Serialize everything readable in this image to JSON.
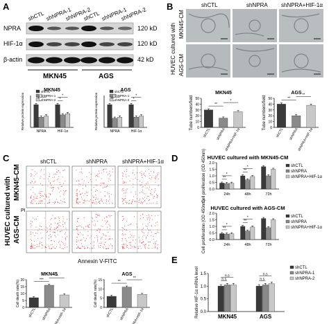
{
  "panels": {
    "A": {
      "letter": "A",
      "lane_labels": [
        "shCTL",
        "shNPRA-1",
        "shNPRA-2",
        "shCTL",
        "shNPRA-1",
        "shNPRA-2"
      ],
      "row_labels": [
        "NPRA",
        "HIF-1α",
        "β-actin"
      ],
      "kd_labels": [
        "120 kD",
        "120 kD",
        "42 kD"
      ],
      "cell_lines": [
        "MKN45",
        "AGS"
      ],
      "chart_data": [
        {
          "type": "bar",
          "title": "MKN45",
          "ylabel": "Relative protein expression",
          "categories": [
            "NPRA",
            "HIF-1α"
          ],
          "series": [
            {
              "name": "shCTL",
              "values": [
                1.0,
                1.0
              ]
            },
            {
              "name": "shNPRA-1",
              "values": [
                0.45,
                0.55
              ]
            },
            {
              "name": "shNPRA-2",
              "values": [
                0.5,
                0.6
              ]
            }
          ],
          "ylim": [
            0,
            1.4
          ],
          "legend": "top-left",
          "significance": [
            "*",
            "*",
            "*",
            "*"
          ]
        },
        {
          "type": "bar",
          "title": "AGS",
          "ylabel": "Relative protein expression",
          "categories": [
            "NPRA",
            "HIF-1α"
          ],
          "series": [
            {
              "name": "shCTL",
              "values": [
                1.0,
                1.0
              ]
            },
            {
              "name": "shNPRA-1",
              "values": [
                0.4,
                0.45
              ]
            },
            {
              "name": "shNPRA-2",
              "values": [
                0.45,
                0.5
              ]
            }
          ],
          "ylim": [
            0,
            1.4
          ],
          "legend": "top-left",
          "significance": [
            "**",
            "**",
            "*",
            "*"
          ]
        }
      ]
    },
    "B": {
      "letter": "B",
      "col_labels": [
        "shCTL",
        "shNPRA",
        "shNPRA+HIF-1α"
      ],
      "side_title": "HUVEC cultured with",
      "row_labels": [
        "MKN45-CM",
        "AGS-CM"
      ],
      "chart_data": [
        {
          "type": "bar",
          "title": "MKN45",
          "ylabel": "Tube numbers/field",
          "categories": [
            "shCTL",
            "shNPRA",
            "shNPRA+HIF-1α"
          ],
          "values": [
            30,
            16,
            27
          ],
          "ylim": [
            0,
            50
          ],
          "yticks": [
            0,
            10,
            20,
            30,
            40,
            50
          ],
          "significance": [
            "**",
            "*"
          ]
        },
        {
          "type": "bar",
          "title": "AGS",
          "ylabel": "Tube numbers/field",
          "categories": [
            "shCTL",
            "shNPRA",
            "shNPRA+HIF-1α"
          ],
          "values": [
            40,
            20,
            38
          ],
          "ylim": [
            0,
            50
          ],
          "yticks": [
            0,
            10,
            20,
            30,
            40,
            50
          ],
          "significance": [
            "**",
            "**"
          ]
        }
      ]
    },
    "C": {
      "letter": "C",
      "col_labels": [
        "shCTL",
        "shNPRA",
        "shNPRA+HIF-1α"
      ],
      "side_title": "HUVEC cultured with",
      "row_labels": [
        "MKN45-CM",
        "AGS-CM"
      ],
      "y_axis": "PI",
      "x_axis": "Annexin V-FITC",
      "chart_data": [
        {
          "type": "bar",
          "title": "MKN45",
          "ylabel": "Cell death rate(%)",
          "categories": [
            "shCTL",
            "shNPRA",
            "shNPRA+HIF-1α"
          ],
          "values": [
            7,
            16,
            9
          ],
          "ylim": [
            0,
            20
          ],
          "yticks": [
            0,
            5,
            10,
            15,
            20
          ],
          "significance": [
            "***",
            "**"
          ]
        },
        {
          "type": "bar",
          "title": "AGS",
          "ylabel": "Cell death rate(%)",
          "categories": [
            "shCTL",
            "shNPRA",
            "shNPRA+HIF-1α"
          ],
          "values": [
            6,
            11,
            7
          ],
          "ylim": [
            0,
            15
          ],
          "yticks": [
            0,
            5,
            10,
            15
          ],
          "significance": [
            "**",
            "**"
          ]
        }
      ]
    },
    "D": {
      "letter": "D",
      "chart_data": [
        {
          "type": "bar",
          "title": "HUVEC cultured with MKN45-CM",
          "ylabel": "Cell proliferation (OD 450nm)",
          "categories": [
            "24h",
            "48h",
            "72h"
          ],
          "series": [
            {
              "name": "shCTL",
              "values": [
                0.45,
                1.0,
                1.7
              ]
            },
            {
              "name": "shNPRA",
              "values": [
                0.42,
                0.7,
                1.0
              ]
            },
            {
              "name": "shNPRA+HIF-1α",
              "values": [
                0.44,
                0.95,
                1.5
              ]
            }
          ],
          "ylim": [
            0,
            2.0
          ],
          "yticks": [
            0.0,
            0.5,
            1.0,
            1.5,
            2.0
          ],
          "significance": [
            "**",
            "*",
            "**",
            "*"
          ],
          "legend": "top-right"
        },
        {
          "type": "bar",
          "title": "HUVEC cultured with AGS-CM",
          "ylabel": "Cell proliferation (OD 450nm)",
          "categories": [
            "24h",
            "48h",
            "72h"
          ],
          "series": [
            {
              "name": "shCTL",
              "values": [
                0.45,
                1.0,
                1.6
              ]
            },
            {
              "name": "shNPRA",
              "values": [
                0.42,
                0.65,
                0.9
              ]
            },
            {
              "name": "shNPRA+HIF-1α",
              "values": [
                0.44,
                0.95,
                1.5
              ]
            }
          ],
          "ylim": [
            0,
            2.0
          ],
          "yticks": [
            0.0,
            0.5,
            1.0,
            1.5,
            2.0
          ],
          "significance": [
            "**",
            "*",
            "**",
            "*"
          ],
          "legend": "top-right"
        }
      ]
    },
    "E": {
      "letter": "E",
      "chart_data": {
        "type": "bar",
        "ylabel": "Relative HIF-1α mRNA level",
        "categories": [
          "MKN45",
          "AGS"
        ],
        "series": [
          {
            "name": "shCTL",
            "values": [
              1.0,
              1.0
            ]
          },
          {
            "name": "shNPRA-1",
            "values": [
              1.05,
              1.05
            ]
          },
          {
            "name": "shNPRA-2",
            "values": [
              1.05,
              1.1
            ]
          }
        ],
        "ylim": [
          0,
          1.5
        ],
        "yticks": [
          0.0,
          0.5,
          1.0,
          1.5
        ],
        "significance": [
          "n.s",
          "n.s",
          "n.s",
          "n.s"
        ],
        "legend": "top-right"
      }
    }
  },
  "colors": {
    "shCTL": "#3a3a3a",
    "shNPRA": "#8a8a8a",
    "shNPRA2": "#c8c8c8",
    "dots": "#e2302c"
  }
}
